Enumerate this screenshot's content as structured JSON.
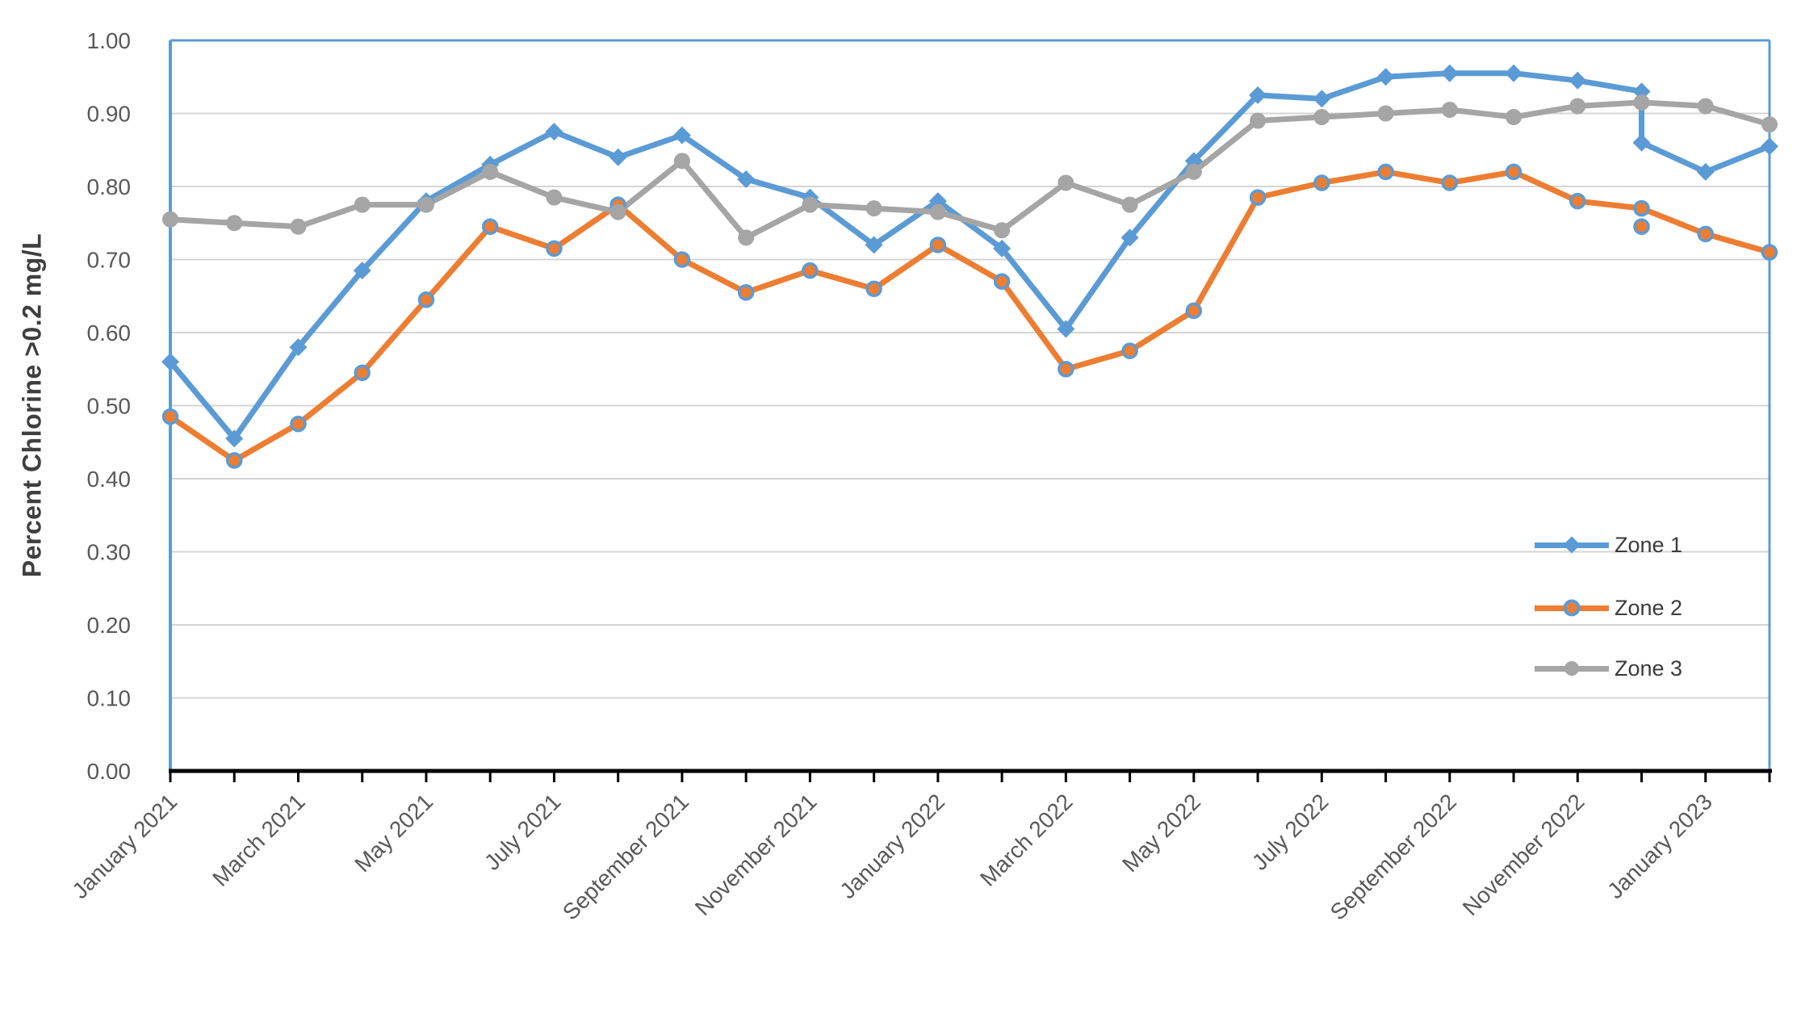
{
  "chart_data": {
    "type": "line",
    "title": "",
    "xlabel": "",
    "ylabel": "Percent Chlorine >0.2 mg/L",
    "ylim": [
      0.0,
      1.0
    ],
    "ytick_step": 0.1,
    "ytick_labels": [
      "0.00",
      "0.10",
      "0.20",
      "0.30",
      "0.40",
      "0.50",
      "0.60",
      "0.70",
      "0.80",
      "0.90",
      "1.00"
    ],
    "grid": "horizontal",
    "legend_position": "middle-right",
    "categories": [
      "January 2021",
      "February 2021",
      "March 2021",
      "April 2021",
      "May 2021",
      "June 2021",
      "July 2021",
      "August 2021",
      "September 2021",
      "October 2021",
      "November 2021",
      "December 2021",
      "January 2022",
      "February 2022",
      "March 2022",
      "April 2022",
      "May 2022",
      "June 2022",
      "July 2022",
      "August 2022",
      "September 2022",
      "October 2022",
      "November 2022",
      "December 2022",
      "January 2023",
      "February 2023"
    ],
    "xtick_labeled_indices": [
      0,
      2,
      4,
      6,
      8,
      10,
      12,
      14,
      16,
      18,
      20,
      22,
      24
    ],
    "xtick_labels": [
      "January 2021",
      "March 2021",
      "May 2021",
      "July 2021",
      "September 2021",
      "November 2021",
      "January 2022",
      "March 2022",
      "May 2022",
      "July 2022",
      "September 2022",
      "November 2022",
      "January 2023"
    ],
    "series": [
      {
        "name": "Zone 1",
        "color": "#5B9BD5",
        "marker": "diamond",
        "values": [
          0.56,
          0.455,
          0.58,
          0.685,
          0.78,
          0.83,
          0.875,
          0.84,
          0.87,
          0.81,
          0.785,
          0.72,
          0.78,
          0.715,
          0.605,
          0.73,
          0.835,
          0.925,
          0.92,
          0.95,
          0.955,
          0.955,
          0.945,
          0.86,
          0.82,
          0.855
        ],
        "extra_points": [
          {
            "at_index": 23,
            "value": 0.93,
            "on_line": true
          }
        ]
      },
      {
        "name": "Zone 2",
        "color": "#ED7D31",
        "marker": "circle",
        "marker_ring": "#5B9BD5",
        "values": [
          0.485,
          0.425,
          0.475,
          0.545,
          0.645,
          0.745,
          0.715,
          0.775,
          0.7,
          0.655,
          0.685,
          0.66,
          0.72,
          0.67,
          0.55,
          0.575,
          0.63,
          0.785,
          0.805,
          0.82,
          0.805,
          0.82,
          0.78,
          0.77,
          0.735,
          0.71
        ],
        "extra_points": [
          {
            "at_index": 23,
            "value": 0.745,
            "on_line": false
          }
        ]
      },
      {
        "name": "Zone 3",
        "color": "#A5A5A5",
        "marker": "circle",
        "values": [
          0.755,
          0.75,
          0.745,
          0.775,
          0.775,
          0.82,
          0.785,
          0.765,
          0.835,
          0.73,
          0.775,
          0.77,
          0.765,
          0.74,
          0.805,
          0.775,
          0.82,
          0.89,
          0.895,
          0.9,
          0.905,
          0.895,
          0.91,
          0.915,
          0.91,
          0.885
        ],
        "extra_points": []
      }
    ],
    "axis_colors": {
      "plot_border": "#5B9BD5",
      "x_axis": "#000000",
      "gridline": "#d4d4d4",
      "tick_label": "#595959"
    }
  }
}
